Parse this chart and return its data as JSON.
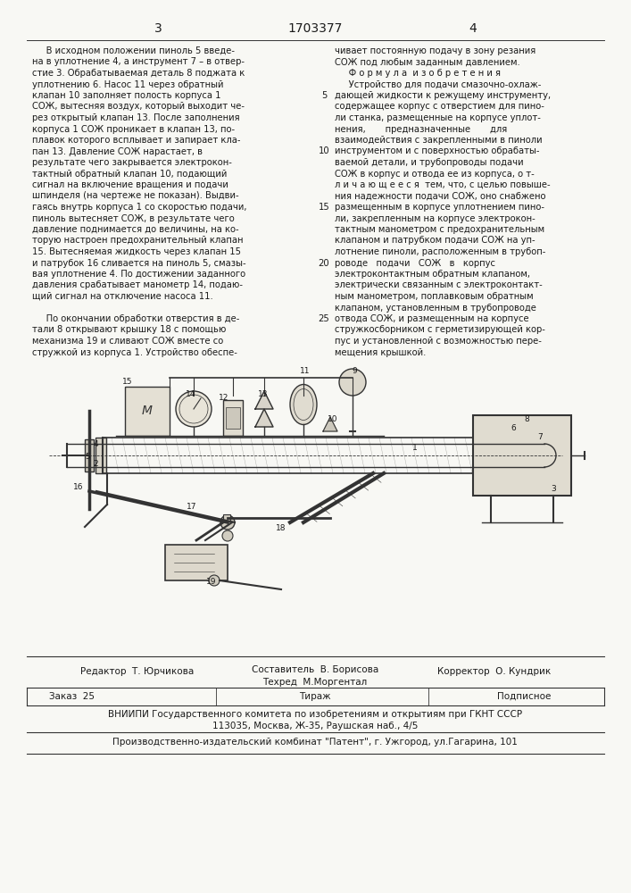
{
  "page_number_left": "3",
  "page_number_center": "1703377",
  "page_number_right": "4",
  "col_left_lines": [
    "     В исходном положении пиноль 5 введе-",
    "на в уплотнение 4, а инструмент 7 – в отвер-",
    "стие 3. Обрабатываемая деталь 8 поджата к",
    "уплотнению 6. Насос 11 через обратный",
    "клапан 10 заполняет полость корпуса 1",
    "СОЖ, вытесняя воздух, который выходит че-",
    "рез открытый клапан 13. После заполнения",
    "корпуса 1 СОЖ проникает в клапан 13, по-",
    "плавок которого всплывает и запирает кла-",
    "пан 13. Давление СОЖ нарастает, в",
    "результате чего закрывается электрокон-",
    "тактный обратный клапан 10, подающий",
    "сигнал на включение вращения и подачи",
    "шпинделя (на чертеже не показан). Выдви-",
    "гаясь внутрь корпуса 1 со скоростью подачи,",
    "пиноль вытесняет СОЖ, в результате чего",
    "давление поднимается до величины, на ко-",
    "торую настроен предохранительный клапан",
    "15. Вытесняемая жидкость через клапан 15",
    "и патрубок 16 сливается на пиноль 5, смазы-",
    "вая уплотнение 4. По достижении заданного",
    "давления срабатывает манометр 14, подаю-",
    "щий сигнал на отключение насоса 11.",
    "",
    "     По окончании обработки отверстия в де-",
    "тали 8 открывают крышку 18 с помощью",
    "механизма 19 и сливают СОЖ вместе со",
    "стружкой из корпуса 1. Устройство обеспе-"
  ],
  "col_right_lines": [
    "чивает постоянную подачу в зону резания",
    "СОЖ под любым заданным давлением.",
    "     Ф о р м у л а  и з о б р е т е н и я",
    "     Устройство для подачи смазочно-охлаж-",
    "дающей жидкости к режущему инструменту,",
    "содержащее корпус с отверстием для пино-",
    "ли станка, размещенные на корпусе уплот-",
    "нения,       предназначенные       для",
    "взаимодействия с закрепленными в пиноли",
    "инструментом и с поверхностью обрабаты-",
    "ваемой детали, и трубопроводы подачи",
    "СОЖ в корпус и отвода ее из корпуса, о т-",
    "л и ч а ю щ е е с я  тем, что, с целью повыше-",
    "ния надежности подачи СОЖ, оно снабжено",
    "размещенным в корпусе уплотнением пино-",
    "ли, закрепленным на корпусе электрокон-",
    "тактным манометром с предохранительным",
    "клапаном и патрубком подачи СОЖ на уп-",
    "лотнение пиноли, расположенным в трубоп-",
    "роводе   подачи   СОЖ   в   корпус",
    "электроконтактным обратным клапаном,",
    "электрически связанным с электроконтакт-",
    "ным манометром, поплавковым обратным",
    "клапаном, установленным в трубопроводе",
    "отвода СОЖ, и размещенным на корпусе",
    "стружкосборником с герметизирующей кор-",
    "пус и установленной с возможностью пере-",
    "мещения крышкой."
  ],
  "line_numbers": [
    [
      5,
      4
    ],
    [
      10,
      9
    ],
    [
      15,
      14
    ],
    [
      20,
      19
    ],
    [
      25,
      24
    ]
  ],
  "bottom": {
    "sostavitel": "Составитель  В. Борисова",
    "tekhred": "Техред  М.Моргентал",
    "redaktor": "Редактор  Т. Юрчикова",
    "korrektor": "Корректор  О. Кундрик",
    "zakaz": "Заказ  25",
    "tirazh": "Тираж",
    "podpisano": "Подписное",
    "vniiipi": "ВНИИПИ Государственного комитета по изобретениям и открытиям при ГКНТ СССР",
    "address": "113035, Москва, Ж-35, Раушская наб., 4/5",
    "factory": "Производственно-издательский комбинат \"Патент\", г. Ужгород, ул.Гагарина, 101"
  },
  "bg_color": "#f8f8f4",
  "text_color": "#1a1a1a",
  "line_color": "#333333"
}
